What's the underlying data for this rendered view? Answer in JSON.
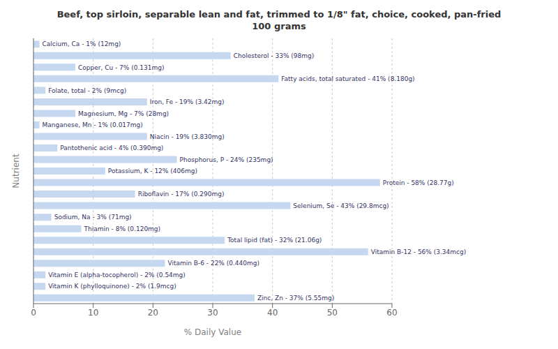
{
  "chart_data": {
    "type": "bar",
    "orientation": "horizontal",
    "title": "Beef, top sirloin, separable lean and fat, trimmed to 1/8\" fat, choice, cooked, pan-fried\n100 grams",
    "xlabel": "% Daily Value",
    "ylabel": "Nutrient",
    "categories": [
      "Calcium, Ca - 1% (12mg)",
      "Cholesterol - 33% (98mg)",
      "Copper, Cu - 7% (0.131mg)",
      "Fatty acids, total saturated - 41% (8.180g)",
      "Folate, total - 2% (9mcg)",
      "Iron, Fe - 19% (3.42mg)",
      "Magnesium, Mg - 7% (28mg)",
      "Manganese, Mn - 1% (0.017mg)",
      "Niacin - 19% (3.830mg)",
      "Pantothenic acid - 4% (0.390mg)",
      "Phosphorus, P - 24% (235mg)",
      "Potassium, K - 12% (406mg)",
      "Protein - 58% (28.77g)",
      "Riboflavin - 17% (0.290mg)",
      "Selenium, Se - 43% (29.8mcg)",
      "Sodium, Na - 3% (71mg)",
      "Thiamin - 8% (0.120mg)",
      "Total lipid (fat) - 32% (21.06g)",
      "Vitamin B-12 - 56% (3.34mcg)",
      "Vitamin B-6 - 22% (0.440mg)",
      "Vitamin E (alpha-tocopherol) - 2% (0.54mg)",
      "Vitamin K (phylloquinone) - 2% (1.9mcg)",
      "Zinc, Zn - 37% (5.55mg)"
    ],
    "values": [
      1,
      33,
      7,
      41,
      2,
      19,
      7,
      1,
      19,
      4,
      24,
      12,
      58,
      17,
      43,
      3,
      8,
      32,
      56,
      22,
      2,
      2,
      37
    ],
    "color": "#c5d8f0",
    "xlim": [
      0,
      60
    ],
    "xticks": [
      0,
      10,
      20,
      30,
      40,
      50,
      60
    ],
    "grid": true,
    "tick_labels": "x"
  }
}
